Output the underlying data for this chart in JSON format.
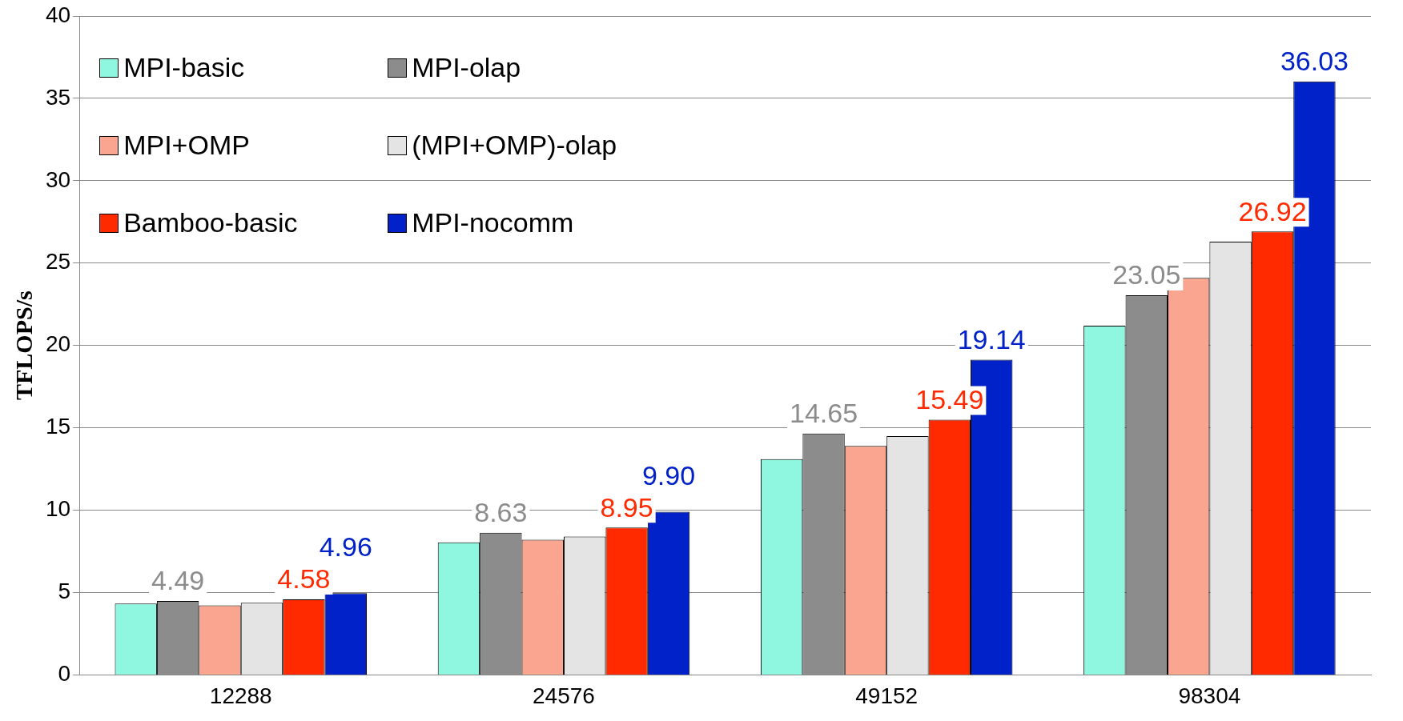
{
  "chart_data": {
    "type": "bar",
    "ylabel": "TFLOPS/s",
    "categories": [
      "12288",
      "24576",
      "49152",
      "98304"
    ],
    "ylim": [
      0,
      40
    ],
    "yticks": [
      0,
      5,
      10,
      15,
      20,
      25,
      30,
      35,
      40
    ],
    "grid": "y",
    "legend": "top left",
    "series": [
      {
        "name": "MPI-basic",
        "color": "#8ff7e0",
        "values": [
          4.33,
          8.05,
          13.1,
          21.2
        ]
      },
      {
        "name": "MPI-olap",
        "color": "#8c8c8c",
        "values": [
          4.49,
          8.63,
          14.65,
          23.05
        ],
        "value_labels": [
          "4.49",
          "8.63",
          "14.65",
          "23.05"
        ]
      },
      {
        "name": "MPI+OMP",
        "color": "#f9a58f",
        "values": [
          4.22,
          8.2,
          13.9,
          24.1
        ]
      },
      {
        "name": "(MPI+OMP)-olap",
        "color": "#e4e4e4",
        "values": [
          4.38,
          8.4,
          14.5,
          26.3
        ]
      },
      {
        "name": "Bamboo-basic",
        "color": "#ff2a00",
        "values": [
          4.58,
          8.95,
          15.49,
          26.92
        ],
        "value_labels": [
          "4.58",
          "8.95",
          "15.49",
          "26.92"
        ]
      },
      {
        "name": "MPI-nocomm",
        "color": "#0022c8",
        "values": [
          4.96,
          9.9,
          19.14,
          36.03
        ],
        "value_labels": [
          "4.96",
          "9.90",
          "19.14",
          "36.03"
        ]
      }
    ]
  }
}
